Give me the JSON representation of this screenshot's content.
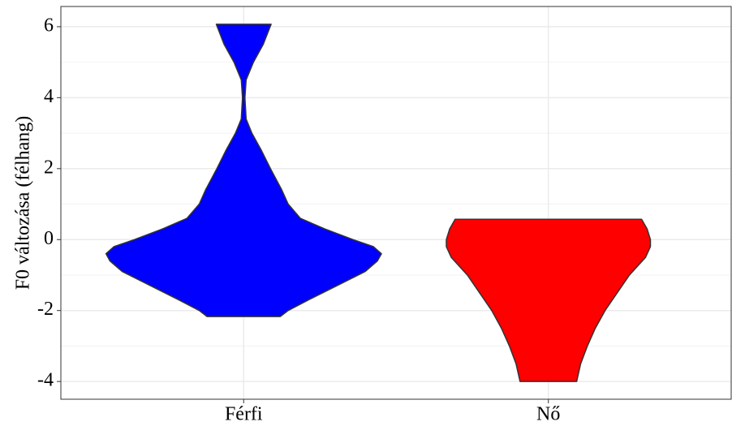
{
  "chart_data": {
    "type": "violin",
    "y_label": "F0 változása (félhang)",
    "categories": [
      "Férfi",
      "Nő"
    ],
    "ylim": [
      -4.5,
      6.57
    ],
    "yticks": [
      -4,
      -2,
      0,
      2,
      4,
      6
    ],
    "grid": true,
    "series": [
      {
        "name": "Férfi",
        "color": "#0000ff",
        "y": [
          -2.17,
          -2.0,
          -1.7,
          -1.3,
          -0.9,
          -0.6,
          -0.4,
          -0.2,
          0.0,
          0.3,
          0.6,
          1.0,
          1.4,
          2.0,
          2.5,
          3.0,
          3.4,
          4.0,
          4.5,
          5.0,
          5.5,
          6.07
        ],
        "half_width": [
          0.12,
          0.146,
          0.213,
          0.306,
          0.399,
          0.439,
          0.452,
          0.426,
          0.359,
          0.266,
          0.186,
          0.146,
          0.125,
          0.088,
          0.059,
          0.027,
          0.008,
          0.004,
          0.008,
          0.032,
          0.064,
          0.09
        ]
      },
      {
        "name": "Nő",
        "color": "#ff0000",
        "y": [
          -4.0,
          -3.5,
          -3.0,
          -2.5,
          -2.0,
          -1.5,
          -1.0,
          -0.5,
          -0.2,
          0.0,
          0.3,
          0.57
        ],
        "half_width": [
          0.093,
          0.106,
          0.128,
          0.154,
          0.186,
          0.226,
          0.266,
          0.319,
          0.335,
          0.335,
          0.324,
          0.306
        ]
      }
    ]
  }
}
